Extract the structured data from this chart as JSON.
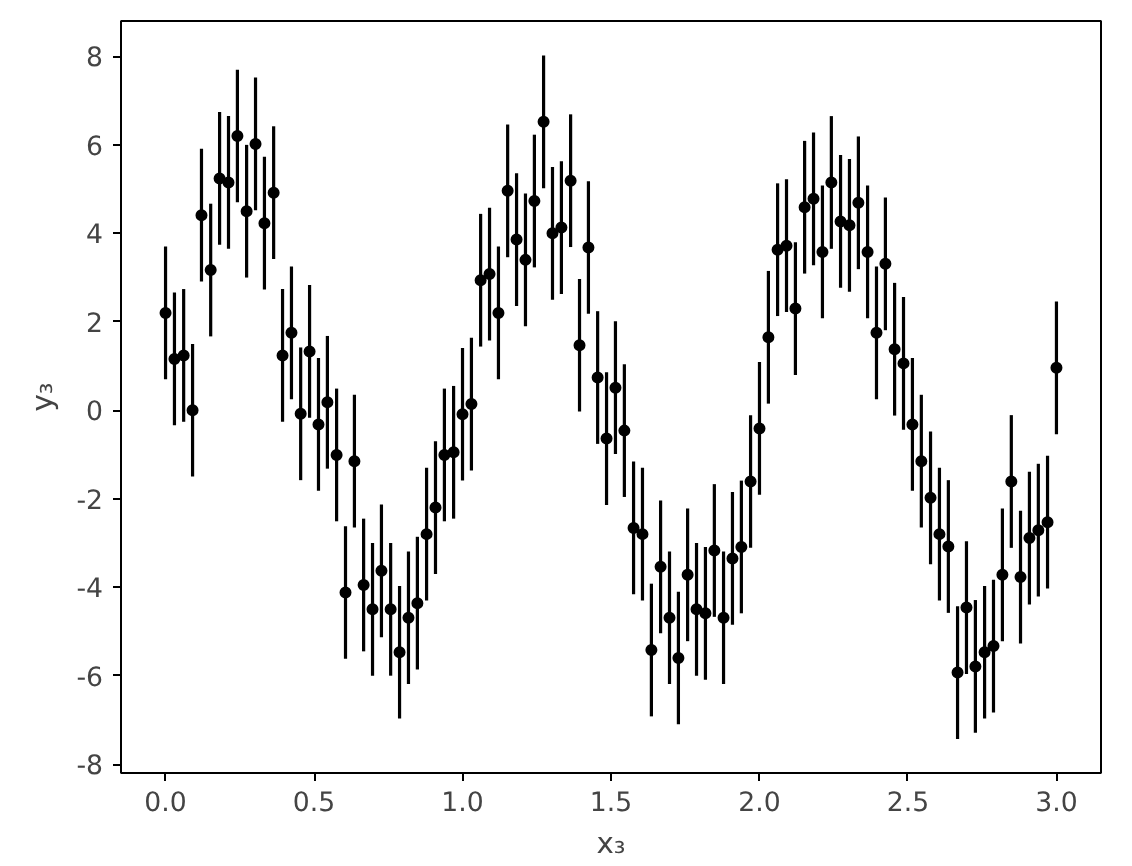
{
  "chart_data": {
    "type": "scatter",
    "xlabel": "x₃",
    "ylabel": "y₃",
    "x": [
      0,
      0.03,
      0.061,
      0.091,
      0.121,
      0.152,
      0.182,
      0.212,
      0.242,
      0.273,
      0.303,
      0.333,
      0.364,
      0.394,
      0.424,
      0.455,
      0.485,
      0.515,
      0.545,
      0.576,
      0.606,
      0.636,
      0.667,
      0.697,
      0.727,
      0.758,
      0.788,
      0.818,
      0.848,
      0.879,
      0.909,
      0.939,
      0.97,
      1,
      1.03,
      1.061,
      1.091,
      1.121,
      1.152,
      1.182,
      1.212,
      1.242,
      1.273,
      1.303,
      1.333,
      1.364,
      1.394,
      1.424,
      1.455,
      1.485,
      1.515,
      1.545,
      1.576,
      1.606,
      1.636,
      1.667,
      1.697,
      1.727,
      1.758,
      1.788,
      1.818,
      1.848,
      1.879,
      1.909,
      1.939,
      1.97,
      2,
      2.03,
      2.061,
      2.091,
      2.121,
      2.152,
      2.182,
      2.212,
      2.242,
      2.273,
      2.303,
      2.333,
      2.364,
      2.394,
      2.424,
      2.455,
      2.485,
      2.515,
      2.545,
      2.576,
      2.606,
      2.636,
      2.667,
      2.697,
      2.727,
      2.758,
      2.788,
      2.818,
      2.848,
      2.879,
      2.909,
      2.939,
      2.97,
      3
    ],
    "series": [
      {
        "color": "#000000",
        "values": [
          2.2,
          1.16,
          1.24,
          0.0,
          4.41,
          3.17,
          5.24,
          5.15,
          6.2,
          4.5,
          6.02,
          4.23,
          4.92,
          1.24,
          1.75,
          -0.08,
          1.33,
          -0.32,
          0.18,
          -1.01,
          -4.12,
          -1.15,
          -3.95,
          -4.5,
          -3.63,
          -4.5,
          -5.47,
          -4.69,
          -4.36,
          -2.8,
          -2.2,
          -1.01,
          -0.95,
          -0.09,
          0.14,
          2.94,
          3.08,
          2.2,
          4.96,
          3.86,
          3.4,
          4.73,
          6.52,
          4.0,
          4.13,
          5.19,
          1.47,
          3.68,
          0.74,
          -0.64,
          0.51,
          -0.46,
          -2.66,
          -2.8,
          -5.42,
          -3.54,
          -4.69,
          -5.6,
          -3.72,
          -4.5,
          -4.59,
          -3.17,
          -4.69,
          -3.35,
          -3.09,
          -1.61,
          -0.41,
          1.65,
          3.63,
          3.72,
          2.3,
          4.59,
          4.78,
          3.58,
          5.15,
          4.27,
          4.18,
          4.69,
          3.58,
          1.75,
          3.31,
          1.38,
          1.06,
          -0.32,
          -1.15,
          -1.98,
          -2.8,
          -3.08,
          -5.93,
          -4.46,
          -5.79,
          -5.47,
          -5.33,
          -3.72,
          -1.61,
          -3.77,
          -2.89,
          -2.71,
          -2.53,
          0.96
        ],
        "errors": [
          1.5,
          1.5,
          1.5,
          1.5,
          1.5,
          1.5,
          1.5,
          1.5,
          1.5,
          1.5,
          1.5,
          1.5,
          1.5,
          1.5,
          1.5,
          1.5,
          1.5,
          1.5,
          1.5,
          1.5,
          1.5,
          1.5,
          1.5,
          1.5,
          1.5,
          1.5,
          1.5,
          1.5,
          1.5,
          1.5,
          1.5,
          1.5,
          1.5,
          1.5,
          1.5,
          1.5,
          1.5,
          1.5,
          1.5,
          1.5,
          1.5,
          1.5,
          1.5,
          1.5,
          1.5,
          1.5,
          1.5,
          1.5,
          1.5,
          1.5,
          1.5,
          1.5,
          1.5,
          1.5,
          1.5,
          1.5,
          1.5,
          1.5,
          1.5,
          1.5,
          1.5,
          1.5,
          1.5,
          1.5,
          1.5,
          1.5,
          1.5,
          1.5,
          1.5,
          1.5,
          1.5,
          1.5,
          1.5,
          1.5,
          1.5,
          1.5,
          1.5,
          1.5,
          1.5,
          1.5,
          1.5,
          1.5,
          1.5,
          1.5,
          1.5,
          1.5,
          1.5,
          1.5,
          1.5,
          1.5,
          1.5,
          1.5,
          1.5,
          1.5,
          1.5,
          1.5,
          1.5,
          1.5,
          1.5,
          1.5
        ]
      }
    ],
    "xlim": [
      -0.15,
      3.15
    ],
    "ylim": [
      -8.2,
      8.8
    ],
    "xticks": [
      {
        "value": 0,
        "label": "0.0"
      },
      0.5,
      {
        "value": 1,
        "label": "1.0"
      },
      1.5,
      {
        "value": 2,
        "label": "2.0"
      },
      2.5,
      {
        "value": 3,
        "label": "3.0"
      }
    ],
    "yticks": [
      -8,
      -6,
      -4,
      -2,
      0,
      2,
      4,
      6,
      8
    ],
    "marker": "circle",
    "grid": false
  }
}
